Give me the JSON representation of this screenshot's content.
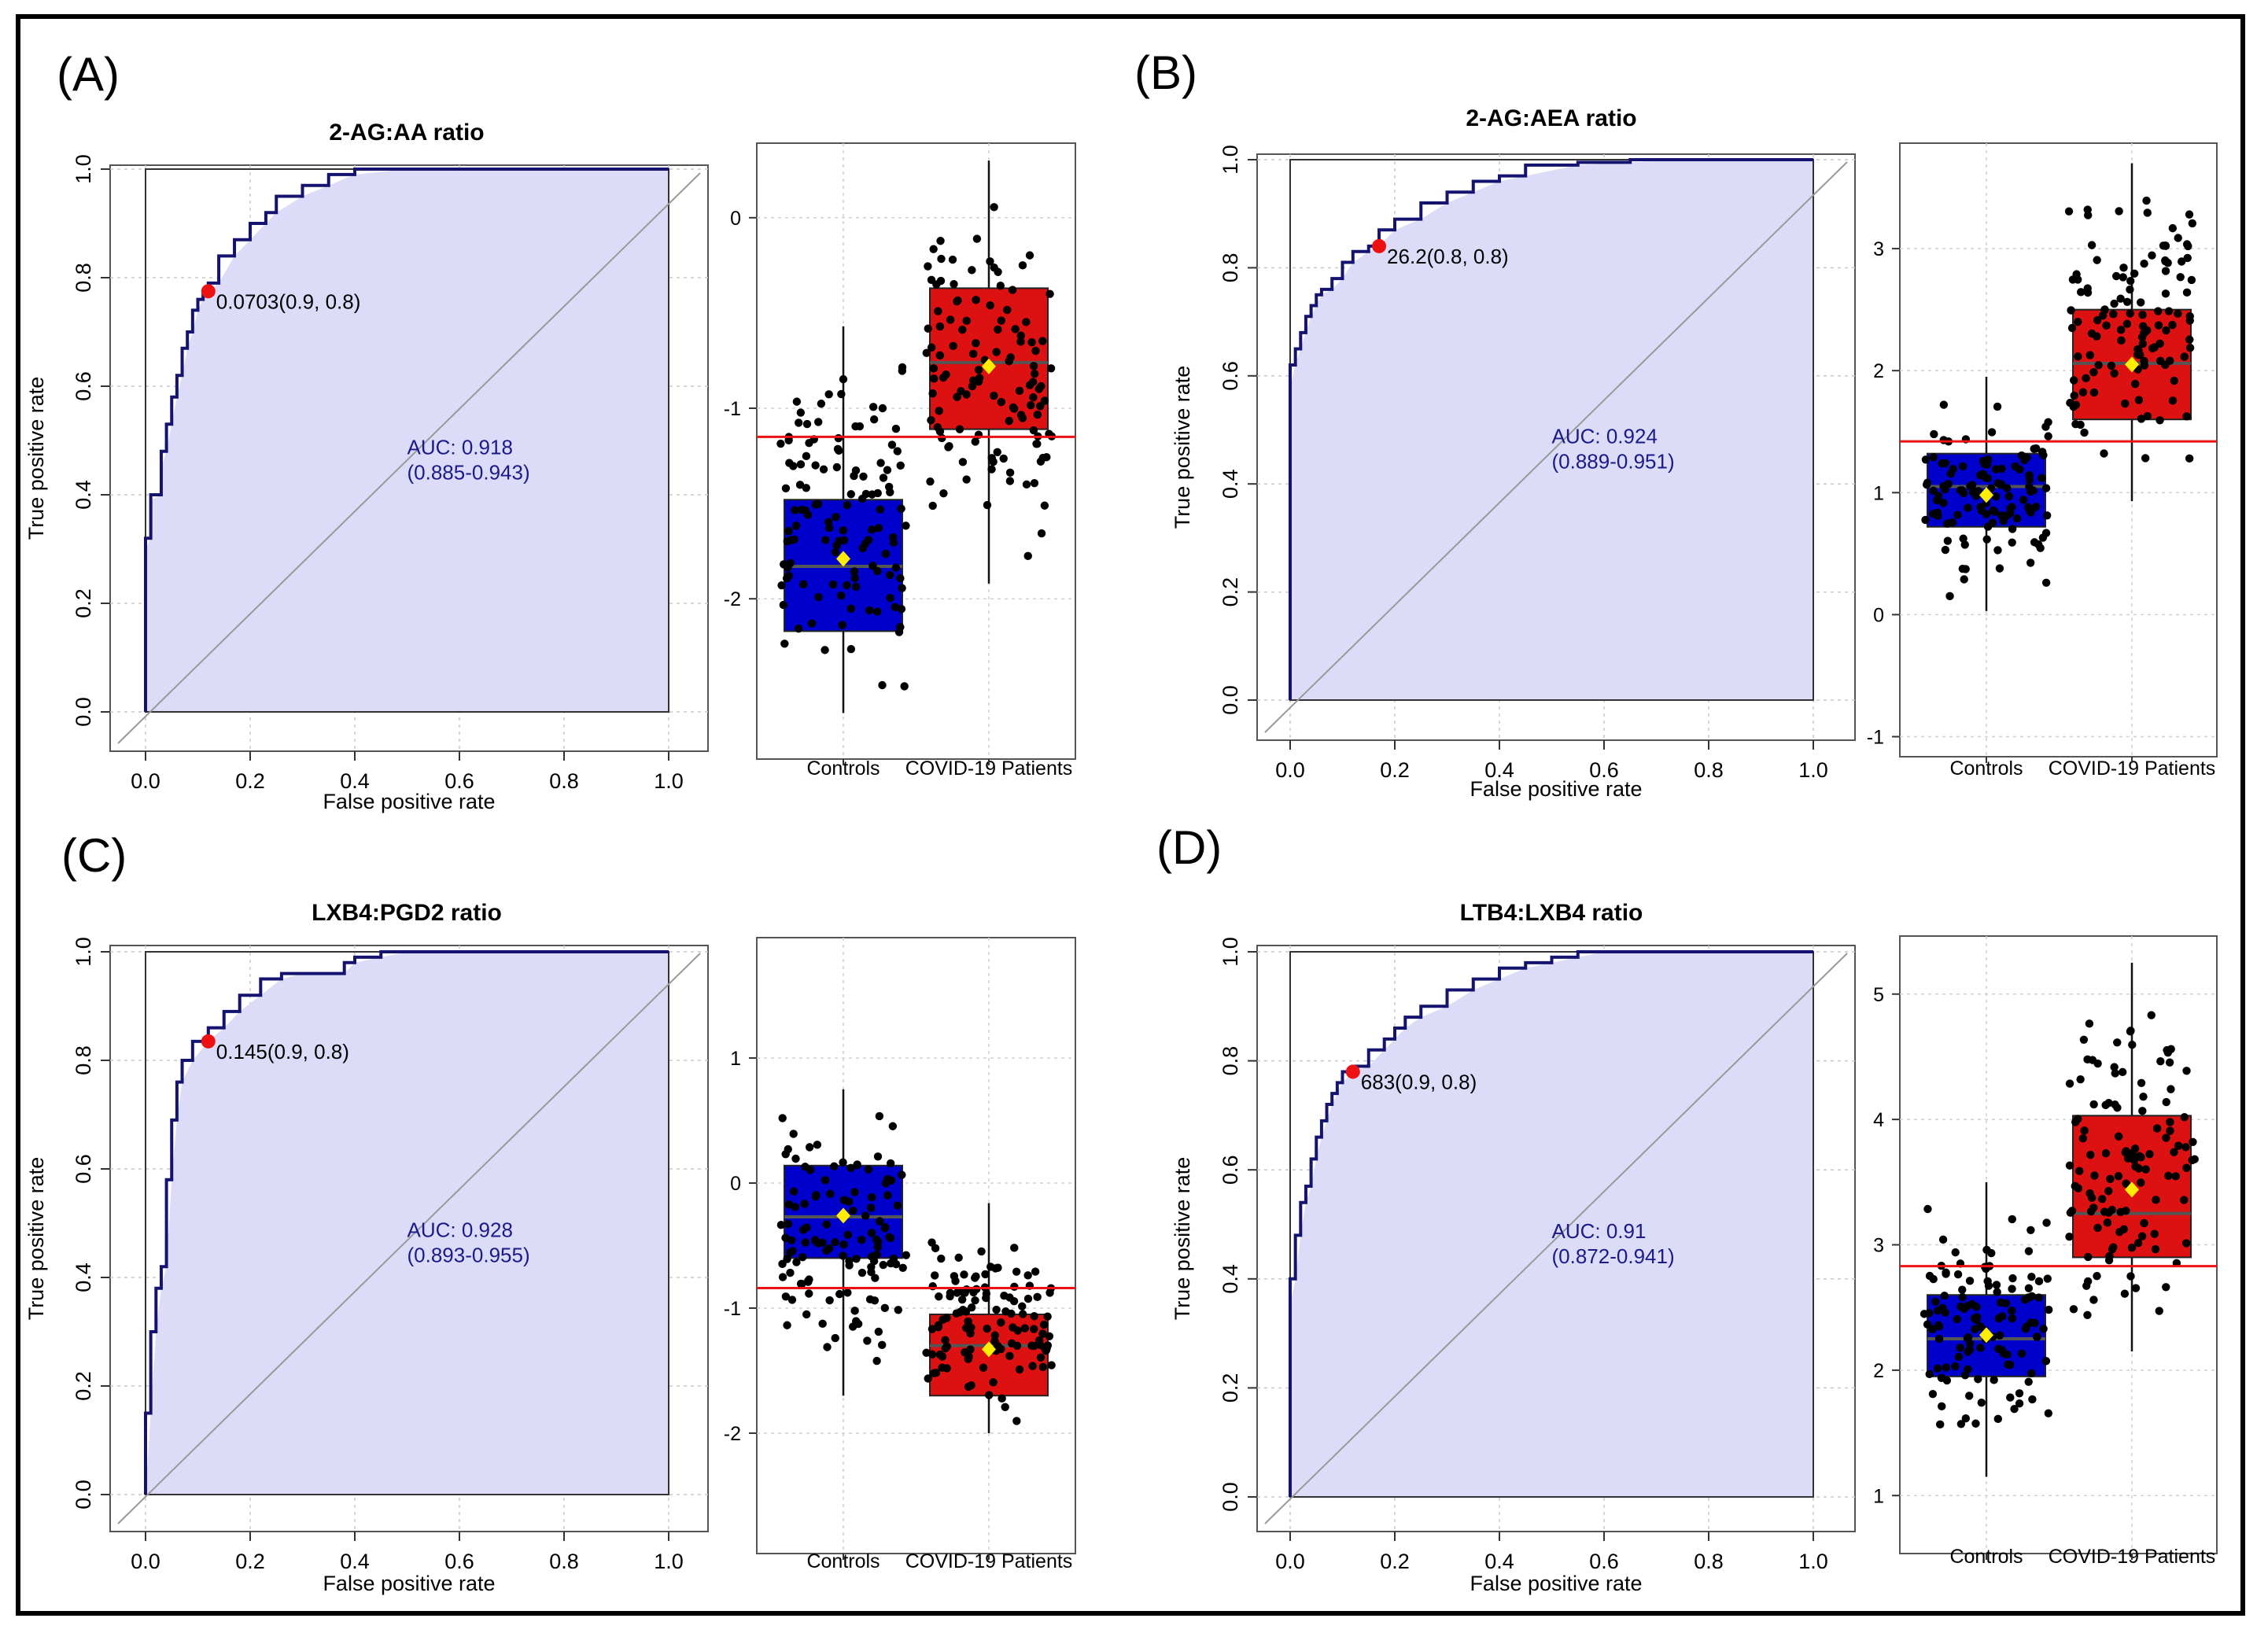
{
  "figure": {
    "roc_axis_labels": {
      "x": "False positive rate",
      "y": "True positive rate"
    },
    "roc_ticks": [
      "0.0",
      "0.2",
      "0.4",
      "0.6",
      "0.8",
      "1.0"
    ],
    "box_categories": [
      "Controls",
      "COVID-19 Patients"
    ]
  },
  "chart_data": [
    {
      "panel": "(A)",
      "type": "line",
      "subtype": "roc",
      "title": "2-AG:AA ratio",
      "xlabel": "False positive rate",
      "ylabel": "True positive rate",
      "xlim": [
        0,
        1
      ],
      "ylim": [
        0,
        1
      ],
      "auc": "AUC: 0.918",
      "auc_ci": "(0.885-0.943)",
      "cutoff_label": "0.0703(0.9, 0.8)",
      "cutoff_point": [
        0.12,
        0.775
      ],
      "x": [
        0,
        0.0,
        0.01,
        0.01,
        0.03,
        0.03,
        0.04,
        0.05,
        0.06,
        0.07,
        0.08,
        0.09,
        0.1,
        0.11,
        0.12,
        0.14,
        0.17,
        0.2,
        0.23,
        0.25,
        0.3,
        0.35,
        0.4,
        0.5,
        0.6,
        0.8,
        1.0
      ],
      "y": [
        0,
        0.3,
        0.32,
        0.39,
        0.4,
        0.45,
        0.48,
        0.53,
        0.58,
        0.62,
        0.67,
        0.7,
        0.74,
        0.76,
        0.775,
        0.79,
        0.84,
        0.87,
        0.9,
        0.92,
        0.95,
        0.97,
        0.99,
        1.0,
        1.0,
        1.0,
        1.0
      ]
    },
    {
      "panel": "(A)",
      "type": "box",
      "categories": [
        "Controls",
        "COVID-19 Patients"
      ],
      "yticks": [
        0,
        -1,
        -2
      ],
      "ylim": [
        -2.8,
        0.35
      ],
      "cutoff": -1.15,
      "boxes": [
        {
          "name": "Controls",
          "color": "#0000cc",
          "q1": -2.17,
          "median": -1.83,
          "q3": -1.48,
          "mean": -1.79,
          "whisker_low": -2.6,
          "whisker_high": -0.57
        },
        {
          "name": "COVID-19 Patients",
          "color": "#dd1111",
          "q1": -1.11,
          "median": -0.76,
          "q3": -0.37,
          "mean": -0.78,
          "whisker_low": -1.92,
          "whisker_high": 0.3
        }
      ]
    },
    {
      "panel": "(B)",
      "type": "line",
      "subtype": "roc",
      "title": "2-AG:AEA ratio",
      "xlabel": "False positive rate",
      "ylabel": "True positive rate",
      "xlim": [
        0,
        1
      ],
      "ylim": [
        0,
        1
      ],
      "auc": "AUC: 0.924",
      "auc_ci": "(0.889-0.951)",
      "cutoff_label": "26.2(0.8, 0.8)",
      "cutoff_point": [
        0.17,
        0.84
      ],
      "x": [
        0,
        0.0,
        0.01,
        0.02,
        0.03,
        0.04,
        0.05,
        0.06,
        0.08,
        0.1,
        0.12,
        0.15,
        0.17,
        0.2,
        0.25,
        0.3,
        0.35,
        0.4,
        0.45,
        0.55,
        0.65,
        0.75,
        0.85,
        1.0
      ],
      "y": [
        0,
        0.58,
        0.62,
        0.65,
        0.68,
        0.71,
        0.73,
        0.75,
        0.76,
        0.78,
        0.81,
        0.83,
        0.84,
        0.87,
        0.89,
        0.92,
        0.94,
        0.96,
        0.97,
        0.99,
        0.995,
        1.0,
        1.0,
        1.0
      ]
    },
    {
      "panel": "(B)",
      "type": "box",
      "categories": [
        "Controls",
        "COVID-19 Patients"
      ],
      "yticks": [
        3,
        2,
        1,
        0,
        -1
      ],
      "ylim": [
        -1.1,
        3.8
      ],
      "cutoff": 1.42,
      "boxes": [
        {
          "name": "Controls",
          "color": "#0000cc",
          "q1": 0.72,
          "median": 1.05,
          "q3": 1.32,
          "mean": 0.98,
          "whisker_low": 0.03,
          "whisker_high": 1.95
        },
        {
          "name": "COVID-19 Patients",
          "color": "#dd1111",
          "q1": 1.6,
          "median": 2.06,
          "q3": 2.5,
          "mean": 2.05,
          "whisker_low": 0.93,
          "whisker_high": 3.7
        }
      ]
    },
    {
      "panel": "(C)",
      "type": "line",
      "subtype": "roc",
      "title": "LXB4:PGD2 ratio",
      "xlabel": "False positive rate",
      "ylabel": "True positive rate",
      "xlim": [
        0,
        1
      ],
      "ylim": [
        0,
        1
      ],
      "auc": "AUC: 0.928",
      "auc_ci": "(0.893-0.955)",
      "cutoff_label": "0.145(0.9, 0.8)",
      "cutoff_point": [
        0.12,
        0.835
      ],
      "x": [
        0,
        0.01,
        0.02,
        0.03,
        0.04,
        0.05,
        0.06,
        0.07,
        0.09,
        0.12,
        0.15,
        0.18,
        0.22,
        0.26,
        0.3,
        0.38,
        0.4,
        0.45,
        0.5,
        0.6,
        0.8,
        1.0
      ],
      "y": [
        0,
        0.15,
        0.3,
        0.38,
        0.42,
        0.58,
        0.69,
        0.76,
        0.8,
        0.835,
        0.86,
        0.89,
        0.92,
        0.95,
        0.96,
        0.96,
        0.98,
        0.99,
        1.0,
        1.0,
        1.0,
        1.0
      ]
    },
    {
      "panel": "(C)",
      "type": "box",
      "categories": [
        "Controls",
        "COVID-19 Patients"
      ],
      "yticks": [
        1,
        0,
        -1,
        -2
      ],
      "ylim": [
        -2.9,
        1.9
      ],
      "cutoff": -0.84,
      "boxes": [
        {
          "name": "Controls",
          "color": "#0000cc",
          "q1": -0.6,
          "median": -0.27,
          "q3": 0.14,
          "mean": -0.26,
          "whisker_low": -1.7,
          "whisker_high": 0.75
        },
        {
          "name": "COVID-19 Patients",
          "color": "#dd1111",
          "q1": -1.7,
          "median": -1.3,
          "q3": -1.05,
          "mean": -1.33,
          "whisker_low": -2.0,
          "whisker_high": -0.16
        }
      ]
    },
    {
      "panel": "(D)",
      "type": "line",
      "subtype": "roc",
      "title": "LTB4:LXB4 ratio",
      "xlabel": "False positive rate",
      "ylabel": "True positive rate",
      "xlim": [
        0,
        1
      ],
      "ylim": [
        0,
        1
      ],
      "auc": "AUC: 0.91",
      "auc_ci": "(0.872-0.941)",
      "cutoff_label": "683(0.9, 0.8)",
      "cutoff_point": [
        0.12,
        0.78
      ],
      "x": [
        0,
        0.0,
        0.01,
        0.02,
        0.03,
        0.04,
        0.05,
        0.06,
        0.07,
        0.08,
        0.09,
        0.1,
        0.12,
        0.15,
        0.18,
        0.2,
        0.22,
        0.25,
        0.3,
        0.35,
        0.4,
        0.45,
        0.5,
        0.55,
        0.6,
        0.8,
        1.0
      ],
      "y": [
        0,
        0.35,
        0.4,
        0.48,
        0.54,
        0.57,
        0.62,
        0.66,
        0.69,
        0.72,
        0.74,
        0.76,
        0.78,
        0.79,
        0.82,
        0.84,
        0.86,
        0.88,
        0.9,
        0.93,
        0.95,
        0.97,
        0.98,
        0.99,
        1.0,
        1.0,
        1.0
      ]
    },
    {
      "panel": "(D)",
      "type": "box",
      "categories": [
        "Controls",
        "COVID-19 Patients"
      ],
      "yticks": [
        5,
        4,
        3,
        2,
        1
      ],
      "ylim": [
        0.6,
        5.4
      ],
      "cutoff": 2.83,
      "boxes": [
        {
          "name": "Controls",
          "color": "#0000cc",
          "q1": 1.95,
          "median": 2.25,
          "q3": 2.6,
          "mean": 2.28,
          "whisker_low": 1.15,
          "whisker_high": 3.5
        },
        {
          "name": "COVID-19 Patients",
          "color": "#dd1111",
          "q1": 2.9,
          "median": 3.25,
          "q3": 4.03,
          "mean": 3.44,
          "whisker_low": 2.15,
          "whisker_high": 5.25
        }
      ]
    }
  ]
}
